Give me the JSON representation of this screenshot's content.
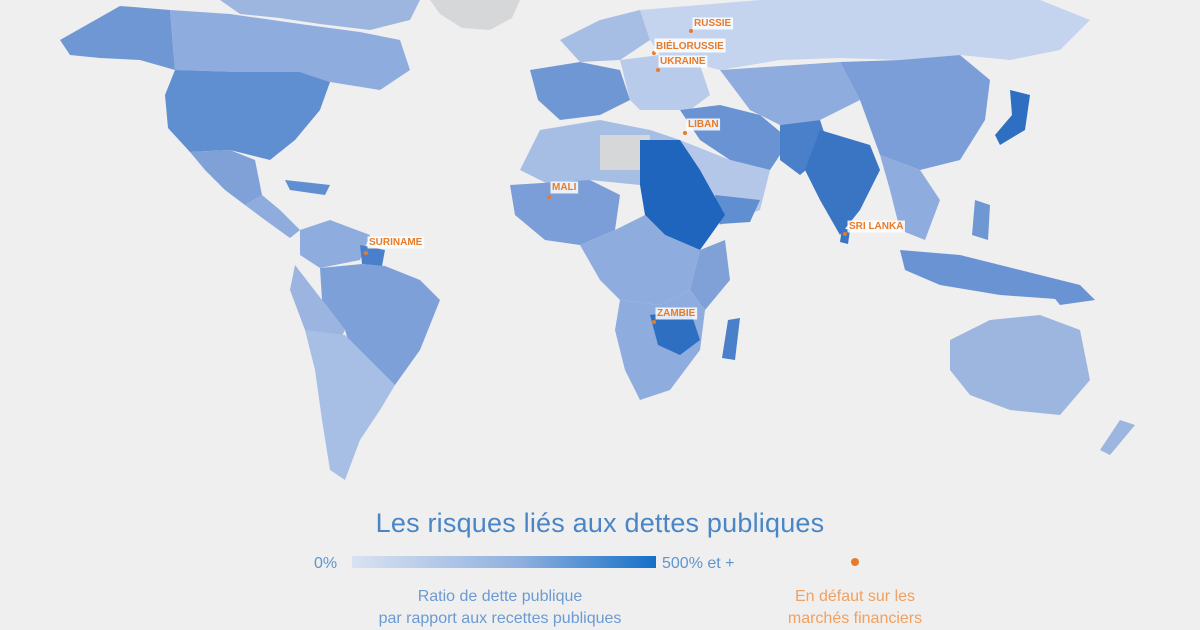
{
  "legend": {
    "title": "Les risques liés aux dettes publiques",
    "scale_min": "0%",
    "scale_max": "500% et +",
    "ratio_label_line1": "Ratio de dette publique",
    "ratio_label_line2": "par rapport aux recettes publiques",
    "default_label_line1": "En défaut sur les",
    "default_label_line2": "marchés financiers"
  },
  "colors": {
    "background": "#efefef",
    "scale_low": "#d9e2f1",
    "scale_high": "#1570c8",
    "no_data": "#d6d7d8",
    "default_marker": "#e97b28",
    "title_text": "#4a86c5"
  },
  "defaulted_countries": [
    {
      "name": "RUSSIE",
      "key": "russie"
    },
    {
      "name": "BIÉLORUSSIE",
      "key": "bielorussie"
    },
    {
      "name": "UKRAINE",
      "key": "ukraine"
    },
    {
      "name": "LIBAN",
      "key": "liban"
    },
    {
      "name": "MALI",
      "key": "mali"
    },
    {
      "name": "SRI LANKA",
      "key": "sri-lanka"
    },
    {
      "name": "SURINAME",
      "key": "suriname"
    },
    {
      "name": "ZAMBIE",
      "key": "zambie"
    }
  ]
}
